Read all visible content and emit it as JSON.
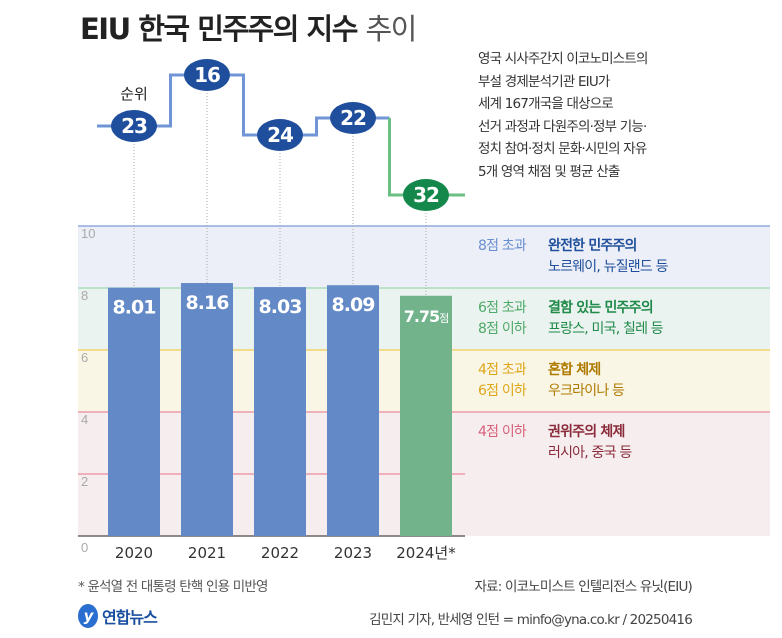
{
  "title": {
    "bold": "EIU 한국 민주주의 지수",
    "light": "추이"
  },
  "description": [
    "영국 시사주간지 이코노미스트의",
    "부설 경제분석기관 EIU가",
    "세계 167개국을 대상으로",
    "선거 과정과 다원주의·정부 기능·",
    "정치 참여·정치 문화·시민의 자유",
    "5개 영역 채점 및 평균 산출"
  ],
  "rank_label": "순위",
  "legend": [
    {
      "range": [
        "8점 초과"
      ],
      "name": "완전한 민주주의",
      "examples": "노르웨이, 뉴질랜드 등",
      "color": "#6a8fd0"
    },
    {
      "range": [
        "6점 초과",
        "8점 이하"
      ],
      "name": "결함 있는 민주주의",
      "examples": "프랑스, 미국, 칠레 등",
      "color": "#4faa6a"
    },
    {
      "range": [
        "4점 초과",
        "6점 이하"
      ],
      "name": "혼합 체제",
      "examples": "우크라이나 등",
      "color": "#e0a61a"
    },
    {
      "range": [
        "4점 이하"
      ],
      "name": "권위주의 체제",
      "examples": "러시아, 중국 등",
      "color": "#d9607a"
    }
  ],
  "chart_data": {
    "type": "bar",
    "title": "EIU 한국 민주주의 지수 추이",
    "categories": [
      "2020",
      "2021",
      "2022",
      "2023",
      "2024년*"
    ],
    "values": [
      8.01,
      8.16,
      8.03,
      8.09,
      7.75
    ],
    "value_labels": [
      "8.01",
      "8.16",
      "8.03",
      "8.09",
      "7.75"
    ],
    "value_unit": "점",
    "ranks": [
      23,
      16,
      24,
      22,
      32
    ],
    "ylim": [
      0,
      10
    ],
    "yticks": [
      "0",
      "2",
      "4",
      "6",
      "8",
      "10"
    ],
    "colors": {
      "normal": "#6489c7",
      "highlight": "#72b38c",
      "rank_normal": "#1f4f9c",
      "rank_highlight": "#14884a",
      "line_normal": "#6f95d6",
      "line_highlight": "#6cbf82"
    }
  },
  "footnote": "* 윤석열 전 대통령 탄핵 인용 미반영",
  "source": "자료: 이코노미스트 인텔리전스 유닛(EIU)",
  "logo": {
    "mark": "y",
    "text": "연합뉴스"
  },
  "credit": "김민지 기자, 반세영 인턴 = minfo@yna.co.kr / 20250416"
}
